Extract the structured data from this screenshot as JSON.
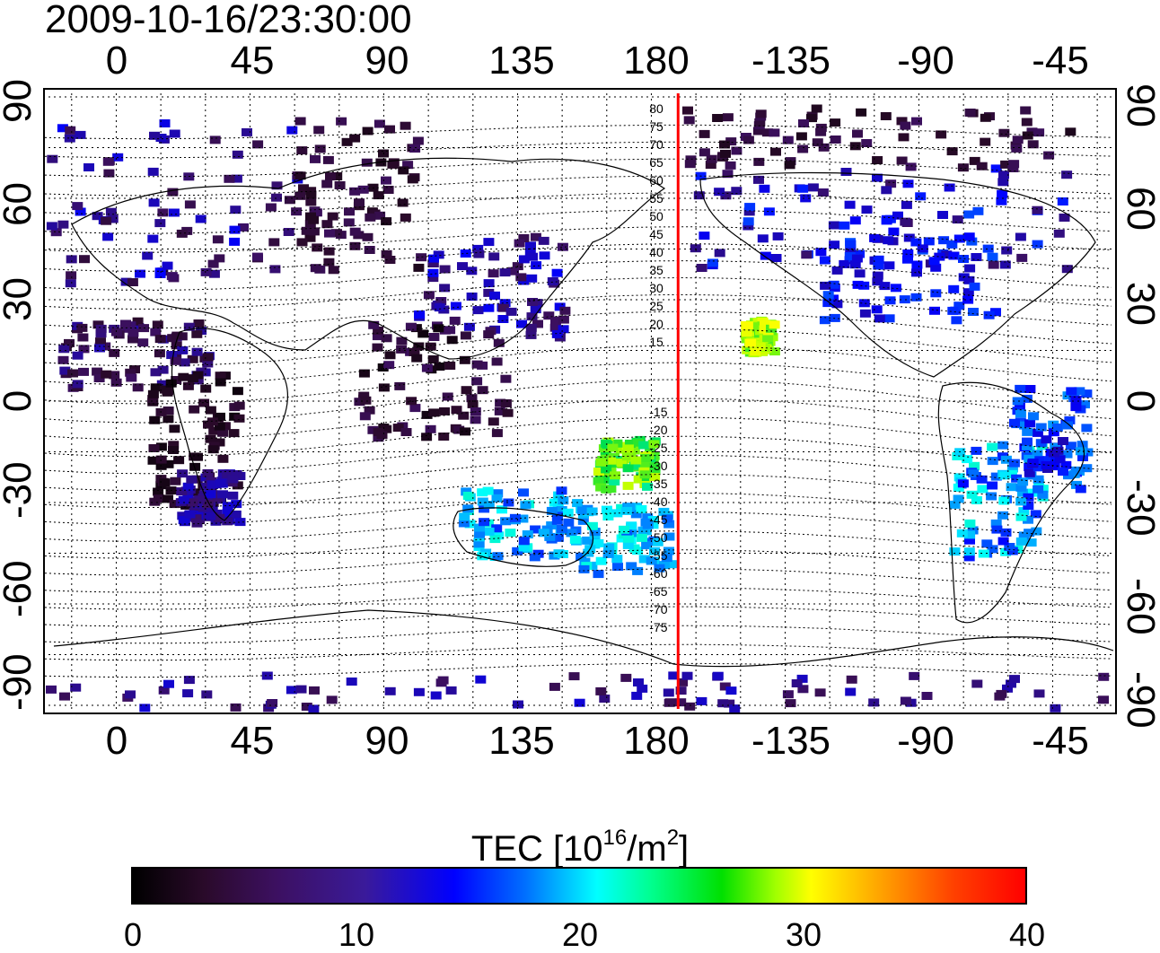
{
  "timestamp": "2009-10-16/23:30:00",
  "map": {
    "x_tick_labels": [
      "0",
      "45",
      "90",
      "135",
      "180",
      "-135",
      "-90",
      "-45"
    ],
    "y_tick_labels": [
      "90",
      "60",
      "30",
      "0",
      "-30",
      "-60",
      "-90"
    ],
    "contour_labels_north": [
      "80",
      "75",
      "70",
      "65",
      "60",
      "55",
      "50",
      "45",
      "40",
      "35",
      "30",
      "25",
      "20",
      "15"
    ],
    "contour_labels_south": [
      "15",
      "20",
      "25",
      "30",
      "35",
      "40",
      "45",
      "50",
      "55",
      "60",
      "65",
      "70",
      "75"
    ],
    "marker_longitude": -171,
    "marker_color": "#ff0000"
  },
  "colorbar": {
    "title": "TEC  [10",
    "title_exp": "16",
    "title_unit": "/m",
    "title_unit_exp": "2",
    "title_end": "]",
    "ticks": [
      "0",
      "10",
      "20",
      "30",
      "40"
    ],
    "min": 0,
    "max": 40
  }
}
